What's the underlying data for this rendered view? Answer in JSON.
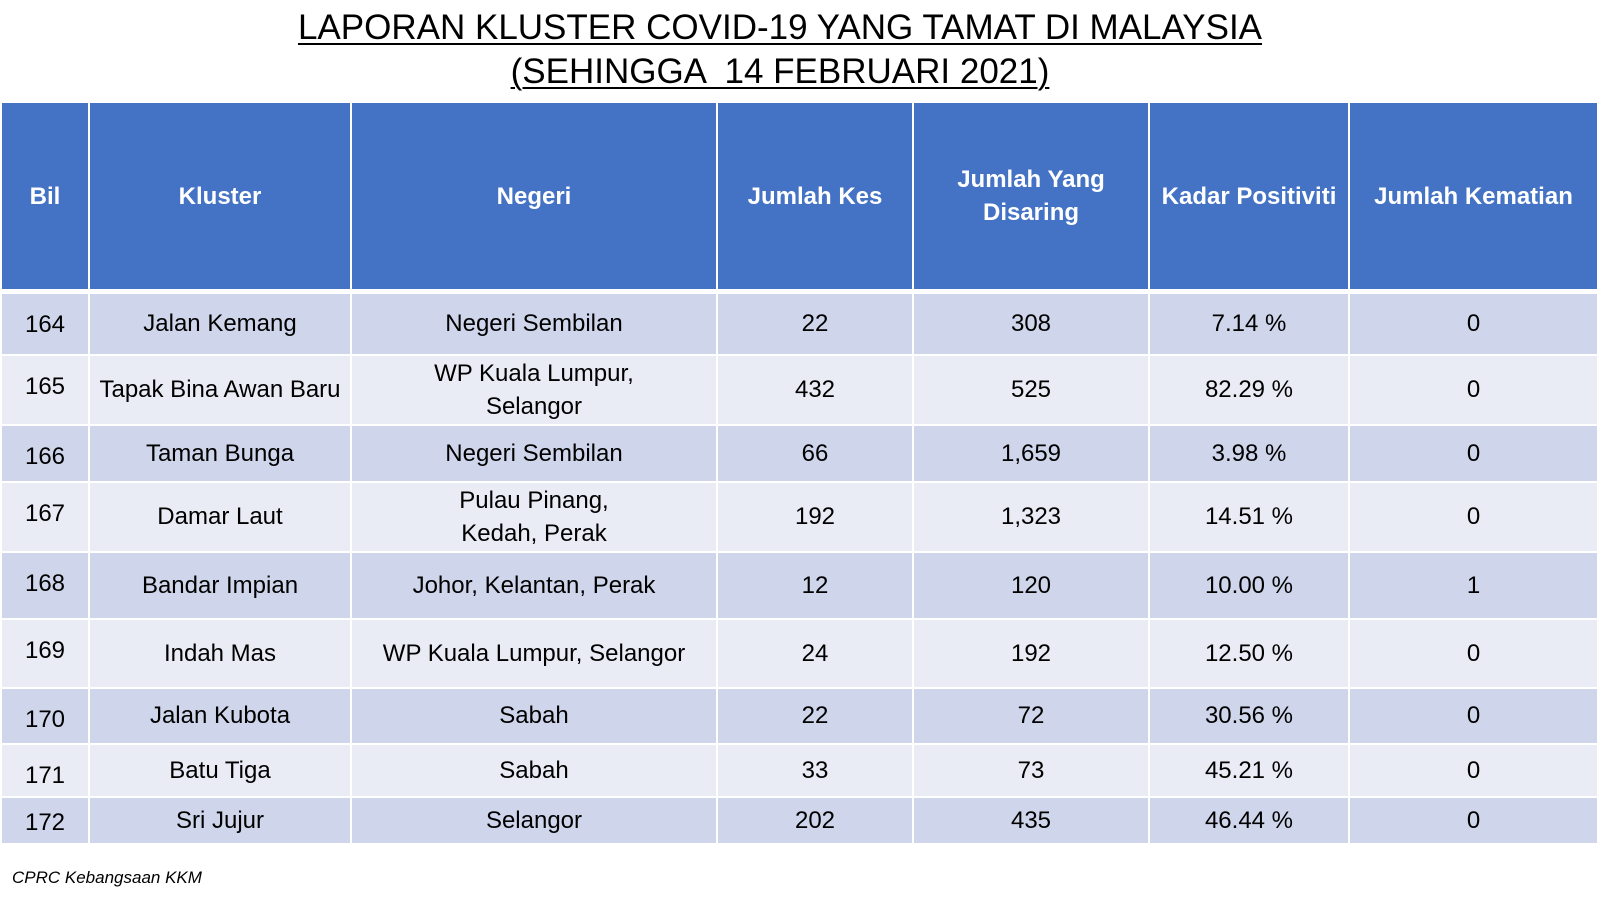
{
  "title": {
    "line1": "LAPORAN KLUSTER COVID-19 YANG TAMAT DI MALAYSIA",
    "line2": "(SEHINGGA  14 FEBRUARI 2021)"
  },
  "table": {
    "headers": {
      "bil": "Bil",
      "kluster": "Kluster",
      "negeri": "Negeri",
      "jumlah_kes": "Jumlah Kes",
      "jumlah_disaring": "Jumlah Yang Disaring",
      "kadar_positiviti": "Kadar Positiviti",
      "jumlah_kematian": "Jumlah Kematian"
    },
    "rows": [
      {
        "bil": "164",
        "kluster": "Jalan Kemang",
        "negeri": "Negeri Sembilan",
        "kes": "22",
        "disaring": "308",
        "positiviti": "7.14 %",
        "kematian": "0"
      },
      {
        "bil": "165",
        "kluster": "Tapak Bina Awan Baru",
        "negeri": "WP Kuala Lumpur,\nSelangor",
        "kes": "432",
        "disaring": "525",
        "positiviti": "82.29 %",
        "kematian": "0"
      },
      {
        "bil": "166",
        "kluster": "Taman Bunga",
        "negeri": "Negeri Sembilan",
        "kes": "66",
        "disaring": "1,659",
        "positiviti": "3.98 %",
        "kematian": "0"
      },
      {
        "bil": "167",
        "kluster": "Damar Laut",
        "negeri": "Pulau Pinang,\nKedah, Perak",
        "kes": "192",
        "disaring": "1,323",
        "positiviti": "14.51 %",
        "kematian": "0"
      },
      {
        "bil": "168",
        "kluster": "Bandar Impian",
        "negeri": "Johor, Kelantan, Perak",
        "kes": "12",
        "disaring": "120",
        "positiviti": "10.00 %",
        "kematian": "1"
      },
      {
        "bil": "169",
        "kluster": "Indah Mas",
        "negeri": "WP Kuala Lumpur, Selangor",
        "kes": "24",
        "disaring": "192",
        "positiviti": "12.50 %",
        "kematian": "0"
      },
      {
        "bil": "170",
        "kluster": "Jalan Kubota",
        "negeri": "Sabah",
        "kes": "22",
        "disaring": "72",
        "positiviti": "30.56 %",
        "kematian": "0"
      },
      {
        "bil": "171",
        "kluster": "Batu Tiga",
        "negeri": "Sabah",
        "kes": "33",
        "disaring": "73",
        "positiviti": "45.21 %",
        "kematian": "0"
      },
      {
        "bil": "172",
        "kluster": "Sri Jujur",
        "negeri": "Selangor",
        "kes": "202",
        "disaring": "435",
        "positiviti": "46.44 %",
        "kematian": "0"
      }
    ]
  },
  "source": "CPRC Kebangsaan KKM",
  "colors": {
    "header_bg": "#4472c4",
    "row_dark": "#cfd5ea",
    "row_light": "#e9ebf5"
  }
}
